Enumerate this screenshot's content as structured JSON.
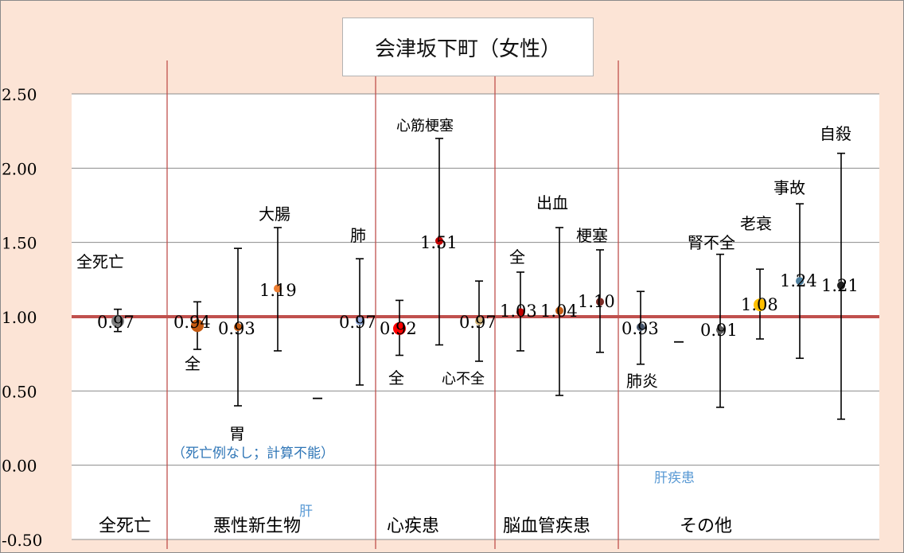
{
  "chart_data": {
    "type": "scatter",
    "subtype": "point-estimate-with-error-bars",
    "title": "会津坂下町（女性）",
    "xlabel": "",
    "ylabel": "",
    "ylim": [
      -0.5,
      2.5
    ],
    "yticks": [
      "2.50",
      "2.00",
      "1.50",
      "1.00",
      "0.50",
      "0.00",
      "-0.50"
    ],
    "reference_line": 1.0,
    "grid": true,
    "groups": [
      "全死亡",
      "悪性新生物",
      "心疾患",
      "脳血管疾患",
      "その他"
    ],
    "points": [
      {
        "group": "全死亡",
        "value": 0.97,
        "label": "0.97",
        "ci": [
          0.9,
          1.05
        ],
        "name": "全死亡",
        "color": "#7f7f7f"
      },
      {
        "group": "悪性新生物",
        "value": 0.94,
        "label": "0.94",
        "ci": [
          0.78,
          1.1
        ],
        "name": "全",
        "color": "#c55a11"
      },
      {
        "group": "悪性新生物",
        "value": 0.93,
        "label": "0.93",
        "ci": [
          0.4,
          1.46
        ],
        "name": "胃",
        "color": "#c55a11"
      },
      {
        "group": "悪性新生物",
        "value": 1.19,
        "label": "1.19",
        "ci": [
          0.77,
          1.6
        ],
        "name": "大腸",
        "color": "#ed7d31"
      },
      {
        "group": "悪性新生物",
        "value": 0.45,
        "label": "",
        "ci": null,
        "name": "肝",
        "note": "（死亡例なし；計算不能）"
      },
      {
        "group": "悪性新生物",
        "value": 0.97,
        "label": "0.97",
        "ci": [
          0.54,
          1.39
        ],
        "name": "肺",
        "color": "#8faadc"
      },
      {
        "group": "心疾患",
        "value": 0.92,
        "label": "0.92",
        "ci": [
          0.74,
          1.11
        ],
        "name": "全",
        "color": "#ff0000"
      },
      {
        "group": "心疾患",
        "value": 1.51,
        "label": "1.51",
        "ci": [
          0.81,
          2.2
        ],
        "name": "心筋梗塞",
        "color": "#c00000"
      },
      {
        "group": "心疾患",
        "value": 0.97,
        "label": "0.97",
        "ci": [
          0.7,
          1.24
        ],
        "name": "心不全",
        "color": "#d6b87c"
      },
      {
        "group": "脳血管疾患",
        "value": 1.03,
        "label": "1.03",
        "ci": [
          0.77,
          1.3
        ],
        "name": "全",
        "color": "#c00000"
      },
      {
        "group": "脳血管疾患",
        "value": 1.04,
        "label": "1.04",
        "ci": [
          0.47,
          1.6
        ],
        "name": "出血",
        "color": "#c55a11"
      },
      {
        "group": "脳血管疾患",
        "value": 1.1,
        "label": "1.10",
        "ci": [
          0.76,
          1.45
        ],
        "name": "梗塞",
        "color": "#7b2c26"
      },
      {
        "group": "その他",
        "value": 0.93,
        "label": "0.93",
        "ci": [
          0.68,
          1.17
        ],
        "name": "肺炎",
        "color": "#44546a"
      },
      {
        "group": "その他",
        "value": 0.83,
        "label": "",
        "ci": null,
        "name": "肝疾患"
      },
      {
        "group": "その他",
        "value": 0.91,
        "label": "0.91",
        "ci": [
          0.39,
          1.42
        ],
        "name": "腎不全",
        "color": "#595959"
      },
      {
        "group": "その他",
        "value": 1.08,
        "label": "1.08",
        "ci": [
          0.85,
          1.32
        ],
        "name": "老衰",
        "color": "#ffc000"
      },
      {
        "group": "その他",
        "value": 1.24,
        "label": "1.24",
        "ci": [
          0.72,
          1.76
        ],
        "name": "事故",
        "color": "#4e7f9e"
      },
      {
        "group": "その他",
        "value": 1.21,
        "label": "1.21",
        "ci": [
          0.31,
          2.1
        ],
        "name": "自殺",
        "color": "#1f1f1f"
      }
    ]
  }
}
